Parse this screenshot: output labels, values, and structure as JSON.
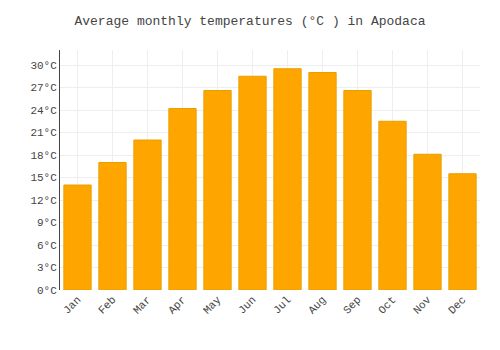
{
  "chart_data": {
    "type": "bar",
    "title": "Average monthly temperatures (°C ) in Apodaca",
    "categories": [
      "Jan",
      "Feb",
      "Mar",
      "Apr",
      "May",
      "Jun",
      "Jul",
      "Aug",
      "Sep",
      "Oct",
      "Nov",
      "Dec"
    ],
    "values": [
      14.0,
      17.0,
      20.0,
      24.2,
      26.6,
      28.5,
      29.5,
      29.0,
      26.6,
      22.5,
      18.1,
      15.5
    ],
    "color": "#FFA500",
    "ylim": [
      0,
      32
    ],
    "yticks": [
      {
        "value": 0,
        "label": "0°C"
      },
      {
        "value": 3,
        "label": "3°C"
      },
      {
        "value": 6,
        "label": "6°C"
      },
      {
        "value": 9,
        "label": "9°C"
      },
      {
        "value": 12,
        "label": "12°C"
      },
      {
        "value": 15,
        "label": "15°C"
      },
      {
        "value": 18,
        "label": "18°C"
      },
      {
        "value": 21,
        "label": "21°C"
      },
      {
        "value": 24,
        "label": "24°C"
      },
      {
        "value": 27,
        "label": "27°C"
      },
      {
        "value": 30,
        "label": "30°C"
      }
    ],
    "grid": true
  }
}
